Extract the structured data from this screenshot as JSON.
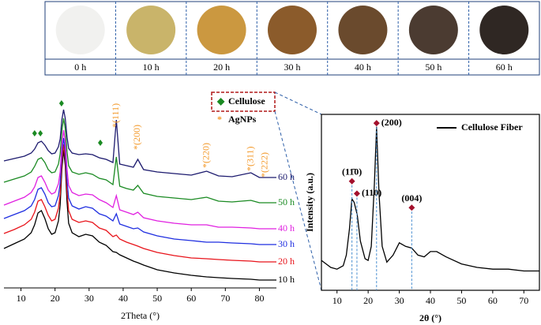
{
  "samples": {
    "labels": [
      "0 h",
      "10 h",
      "20 h",
      "30 h",
      "40 h",
      "50 h",
      "60 h"
    ],
    "colors": [
      "#f1f1ef",
      "#c9b46a",
      "#cb9840",
      "#8b5b2b",
      "#6a4a2d",
      "#4b3b31",
      "#2f2723"
    ]
  },
  "chart_data": [
    {
      "type": "line",
      "xlabel": "2Theta (°)",
      "xlim": [
        5,
        85
      ],
      "ylim": [
        0,
        240
      ],
      "xticks": [
        10,
        20,
        30,
        40,
        50,
        60,
        70,
        80
      ],
      "x": [
        5,
        8,
        11,
        13,
        14,
        15,
        16,
        17,
        18,
        19,
        20,
        21,
        21.5,
        22,
        22.5,
        23,
        23.5,
        24,
        25,
        27,
        29,
        31,
        33,
        35,
        37,
        38,
        39,
        41,
        43,
        44.3,
        46,
        50,
        55,
        60,
        64.5,
        68,
        72,
        77.5,
        80,
        85
      ],
      "series": [
        {
          "name": "10 h",
          "color": "#000000",
          "values": [
            50,
            56,
            62,
            70,
            80,
            95,
            98,
            88,
            75,
            68,
            70,
            85,
            105,
            150,
            175,
            155,
            110,
            82,
            70,
            65,
            68,
            66,
            58,
            54,
            46,
            45,
            42,
            38,
            34,
            32,
            29,
            23,
            19,
            16,
            14,
            13,
            12,
            11,
            10,
            10
          ]
        },
        {
          "name": "20 h",
          "color": "#e8141b",
          "values": [
            69,
            74,
            80,
            87,
            96,
            110,
            112,
            103,
            92,
            85,
            87,
            101,
            119,
            159,
            182,
            164,
            123,
            98,
            87,
            83,
            85,
            83,
            76,
            73,
            65,
            67,
            62,
            58,
            55,
            53,
            50,
            45,
            41,
            38,
            37,
            36,
            35,
            34,
            33,
            33
          ]
        },
        {
          "name": "30 h",
          "color": "#1f2ee0",
          "values": [
            88,
            93,
            98,
            104,
            112,
            125,
            127,
            119,
            108,
            103,
            104,
            117,
            133,
            170,
            190,
            174,
            137,
            114,
            104,
            100,
            103,
            101,
            94,
            91,
            85,
            94,
            81,
            78,
            75,
            76,
            71,
            66,
            62,
            60,
            58,
            58,
            57,
            56,
            55,
            55
          ]
        },
        {
          "name": "40 h",
          "color": "#e020e0",
          "values": [
            105,
            110,
            115,
            121,
            128,
            140,
            142,
            134,
            124,
            119,
            121,
            132,
            147,
            181,
            200,
            185,
            151,
            130,
            121,
            117,
            119,
            118,
            112,
            108,
            102,
            117,
            99,
            96,
            93,
            96,
            89,
            85,
            82,
            80,
            80,
            77,
            77,
            76,
            75,
            75
          ]
        },
        {
          "name": "50 h",
          "color": "#1a8a22",
          "values": [
            134,
            138,
            142,
            147,
            154,
            163,
            165,
            159,
            150,
            146,
            147,
            157,
            170,
            199,
            215,
            202,
            173,
            155,
            147,
            144,
            146,
            144,
            139,
            137,
            131,
            166,
            129,
            126,
            124,
            130,
            120,
            116,
            114,
            112,
            115,
            110,
            109,
            111,
            108,
            108
          ]
        },
        {
          "name": "60 h",
          "color": "#1c1a6e",
          "values": [
            161,
            164,
            167,
            171,
            176,
            184,
            186,
            181,
            174,
            170,
            171,
            179,
            189,
            213,
            226,
            215,
            192,
            177,
            171,
            169,
            170,
            169,
            165,
            163,
            159,
            213,
            157,
            155,
            153,
            163,
            150,
            147,
            145,
            143,
            148,
            142,
            141,
            146,
            140,
            140
          ]
        }
      ],
      "legend": [
        {
          "symbol": "◆",
          "label": "Cellulose",
          "color": "#1a8a22"
        },
        {
          "symbol": "*",
          "label": "AgNPs",
          "color": "#f39a2c"
        }
      ],
      "cellulose_markers": [
        {
          "x": 14,
          "y": 196
        },
        {
          "x": 15.7,
          "y": 196
        },
        {
          "x": 21.9,
          "y": 234
        },
        {
          "x": 33.3,
          "y": 184
        }
      ],
      "ag_labels": [
        {
          "label": "*(111)",
          "x": 38,
          "y": 203
        },
        {
          "label": "*(200)",
          "x": 44.3,
          "y": 175
        },
        {
          "label": "*(220)",
          "x": 64.5,
          "y": 152
        },
        {
          "label": "*(311)",
          "x": 77.5,
          "y": 148
        },
        {
          "label": "*(222)",
          "x": 81.7,
          "y": 140
        }
      ]
    },
    {
      "type": "line",
      "xlabel": "2θ (°)",
      "ylabel": "Intensity (a.u.)",
      "xlim": [
        5,
        75
      ],
      "ylim": [
        0,
        100
      ],
      "xticks": [
        10,
        20,
        30,
        40,
        50,
        60,
        70
      ],
      "legend_position": "upper right",
      "x": [
        5,
        8,
        10,
        12,
        13,
        14,
        14.8,
        15.5,
        16.5,
        17.5,
        19,
        20,
        21,
        22,
        22.7,
        23.5,
        24.5,
        26,
        28,
        30,
        32,
        34,
        36,
        38,
        40,
        42,
        45,
        50,
        55,
        60,
        65,
        70,
        75
      ],
      "series": [
        {
          "name": "Cellulose Fiber",
          "color": "#000000",
          "values": [
            17,
            13,
            12,
            14,
            20,
            35,
            52,
            50,
            43,
            28,
            18,
            17,
            25,
            60,
            93,
            55,
            25,
            16,
            20,
            27,
            25,
            24,
            20,
            19,
            22,
            22,
            19,
            15,
            13,
            12,
            12,
            11,
            11
          ]
        }
      ],
      "peaks": [
        {
          "label": "(11̄0)",
          "x": 14.8,
          "y": 62
        },
        {
          "label": "(110)",
          "x": 16.4,
          "y": 55
        },
        {
          "label": "(200)",
          "x": 22.7,
          "y": 95
        },
        {
          "label": "(004)",
          "x": 34,
          "y": 47
        }
      ]
    }
  ]
}
